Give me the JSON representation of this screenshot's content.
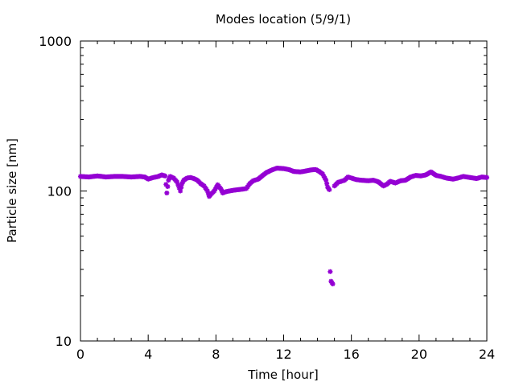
{
  "chart_data": {
    "type": "scatter",
    "title": "Modes location (5/9/1)",
    "xlabel": "Time [hour]",
    "ylabel": "Particle size [nm]",
    "xlim": [
      0,
      24
    ],
    "ylim": [
      10,
      1000
    ],
    "y_scale": "log",
    "x_ticks": [
      0,
      4,
      8,
      12,
      16,
      20,
      24
    ],
    "x_tick_labels": [
      "0",
      "4",
      "8",
      "12",
      "16",
      "20",
      "24"
    ],
    "y_ticks": [
      10,
      100,
      1000
    ],
    "y_tick_labels": [
      "10",
      "100",
      "1000"
    ],
    "grid": false,
    "legend": "none",
    "marker_color": "#9400d3",
    "series": [
      {
        "x": [
          0.0,
          0.5,
          1.0,
          1.5,
          2.0,
          2.5,
          3.0,
          3.5,
          3.8,
          4.0,
          4.3,
          4.6,
          4.8,
          5.0,
          5.1,
          5.2,
          5.3,
          5.5,
          5.7,
          5.9,
          6.0,
          6.1,
          6.3,
          6.5,
          6.7,
          6.9,
          7.1,
          7.3,
          7.5,
          7.6,
          7.7,
          7.9,
          8.1,
          8.3,
          8.4,
          8.6,
          8.8,
          9.0,
          9.3,
          9.6,
          9.8,
          10.0,
          10.2,
          10.5,
          10.8,
          11.0,
          11.3,
          11.6,
          12.0,
          12.3,
          12.6,
          13.0,
          13.3,
          13.6,
          13.9,
          14.1,
          14.3,
          14.5,
          14.6,
          14.7,
          14.75,
          14.8,
          14.9,
          15.0,
          15.2,
          15.4,
          15.6,
          15.8,
          16.0,
          16.3,
          16.6,
          17.0,
          17.3,
          17.6,
          17.9,
          18.1,
          18.3,
          18.6,
          18.9,
          19.2,
          19.5,
          19.8,
          20.1,
          20.4,
          20.7,
          21.0,
          21.3,
          21.6,
          22.0,
          22.3,
          22.6,
          23.0,
          23.4,
          23.7,
          24.0
        ],
        "y": [
          125,
          124,
          126,
          124,
          125,
          125,
          124,
          125,
          124,
          120,
          123,
          125,
          128,
          126,
          97,
          118,
          125,
          122,
          115,
          100,
          112,
          118,
          122,
          123,
          121,
          118,
          112,
          108,
          100,
          92,
          95,
          100,
          110,
          103,
          97,
          99,
          100,
          101,
          102,
          103,
          104,
          112,
          117,
          120,
          128,
          133,
          138,
          142,
          141,
          139,
          135,
          134,
          136,
          138,
          139,
          135,
          130,
          118,
          106,
          102,
          29,
          25,
          24,
          108,
          114,
          116,
          118,
          124,
          122,
          119,
          118,
          117,
          118,
          115,
          108,
          111,
          116,
          113,
          117,
          118,
          124,
          127,
          126,
          128,
          134,
          127,
          125,
          122,
          120,
          122,
          125,
          123,
          121,
          124,
          123
        ]
      }
    ]
  }
}
